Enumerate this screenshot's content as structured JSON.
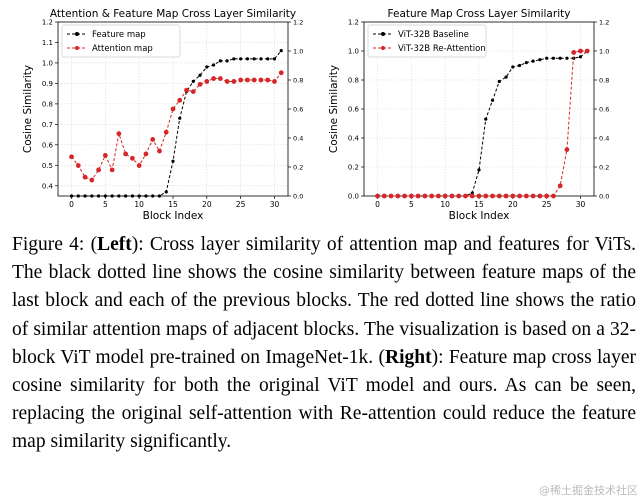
{
  "chart_data": [
    {
      "type": "line",
      "title": "Attention & Feature Map Cross Layer Similarity",
      "xlabel": "Block Index",
      "ylabel": "Cosine Similarity",
      "xlim": [
        -2,
        32
      ],
      "ylim": [
        0.35,
        1.2
      ],
      "ylim_right": [
        0.0,
        1.2
      ],
      "x_ticks": [
        0,
        5,
        10,
        15,
        20,
        25,
        30
      ],
      "y_ticks": [
        0.4,
        0.5,
        0.6,
        0.7,
        0.8,
        0.9,
        1.0,
        1.1,
        1.2
      ],
      "y_ticks_right": [
        0.0,
        0.2,
        0.4,
        0.6,
        0.8,
        1.0,
        1.2
      ],
      "grid": true,
      "legend_position": "top-left",
      "series": [
        {
          "name": "Feature map",
          "axis": "left",
          "color": "#000000",
          "x": [
            0,
            1,
            2,
            3,
            4,
            5,
            6,
            7,
            8,
            9,
            10,
            11,
            12,
            13,
            14,
            15,
            16,
            17,
            18,
            19,
            20,
            21,
            22,
            23,
            24,
            25,
            26,
            27,
            28,
            29,
            30,
            31
          ],
          "values": [
            0.35,
            0.35,
            0.35,
            0.35,
            0.35,
            0.35,
            0.35,
            0.35,
            0.35,
            0.35,
            0.35,
            0.35,
            0.35,
            0.35,
            0.37,
            0.52,
            0.73,
            0.86,
            0.91,
            0.94,
            0.98,
            0.99,
            1.01,
            1.01,
            1.02,
            1.02,
            1.02,
            1.02,
            1.02,
            1.02,
            1.02,
            1.06
          ]
        },
        {
          "name": "Attention map",
          "axis": "right",
          "color": "#d62728",
          "x": [
            0,
            1,
            2,
            3,
            4,
            5,
            6,
            7,
            8,
            9,
            10,
            11,
            12,
            13,
            14,
            15,
            16,
            17,
            18,
            19,
            20,
            21,
            22,
            23,
            24,
            25,
            26,
            27,
            28,
            29,
            30,
            31
          ],
          "values": [
            0.27,
            0.21,
            0.13,
            0.11,
            0.18,
            0.28,
            0.18,
            0.43,
            0.29,
            0.26,
            0.21,
            0.29,
            0.39,
            0.31,
            0.44,
            0.6,
            0.66,
            0.73,
            0.72,
            0.77,
            0.79,
            0.81,
            0.81,
            0.79,
            0.79,
            0.8,
            0.8,
            0.8,
            0.8,
            0.8,
            0.79,
            0.85
          ]
        }
      ]
    },
    {
      "type": "line",
      "title": "Feature Map Cross Layer Similarity",
      "xlabel": "Block Index",
      "ylabel": "Cosine Similarity",
      "xlim": [
        -2,
        32
      ],
      "ylim": [
        0.0,
        1.2
      ],
      "ylim_right": [
        0.0,
        1.2
      ],
      "x_ticks": [
        0,
        5,
        10,
        15,
        20,
        25,
        30
      ],
      "y_ticks": [
        0.0,
        0.2,
        0.4,
        0.6,
        0.8,
        1.0,
        1.2
      ],
      "y_ticks_right": [
        0.0,
        0.2,
        0.4,
        0.6,
        0.8,
        1.0,
        1.2
      ],
      "grid": true,
      "legend_position": "top-left",
      "series": [
        {
          "name": "ViT-32B Baseline",
          "axis": "left",
          "color": "#000000",
          "x": [
            0,
            1,
            2,
            3,
            4,
            5,
            6,
            7,
            8,
            9,
            10,
            11,
            12,
            13,
            14,
            15,
            16,
            17,
            18,
            19,
            20,
            21,
            22,
            23,
            24,
            25,
            26,
            27,
            28,
            29,
            30,
            31
          ],
          "values": [
            0,
            0,
            0,
            0,
            0,
            0,
            0,
            0,
            0,
            0,
            0,
            0,
            0,
            0,
            0.02,
            0.18,
            0.53,
            0.66,
            0.79,
            0.82,
            0.89,
            0.9,
            0.92,
            0.93,
            0.94,
            0.95,
            0.95,
            0.95,
            0.95,
            0.95,
            0.96,
            1.0
          ]
        },
        {
          "name": "ViT-32B Re-Attention",
          "axis": "right",
          "color": "#d62728",
          "x": [
            0,
            1,
            2,
            3,
            4,
            5,
            6,
            7,
            8,
            9,
            10,
            11,
            12,
            13,
            14,
            15,
            16,
            17,
            18,
            19,
            20,
            21,
            22,
            23,
            24,
            25,
            26,
            27,
            28,
            29,
            30,
            31
          ],
          "values": [
            0,
            0,
            0,
            0,
            0,
            0,
            0,
            0,
            0,
            0,
            0,
            0,
            0,
            0,
            0,
            0,
            0,
            0,
            0,
            0,
            0,
            0,
            0,
            0,
            0,
            0,
            0,
            0.07,
            0.32,
            0.99,
            1.0,
            1.0
          ]
        }
      ]
    }
  ],
  "caption": {
    "label": "Figure 4: (",
    "left_word": "Left",
    "part1": "): Cross layer similarity of attention map and features for ViTs. The black dotted line shows the cosine similarity between feature maps of the last block and each of the previous blocks. The red dotted line shows the ratio of similar attention maps of adjacent blocks. The visualization is based on a 32-block ViT model pre-trained on ImageNet-1k. (",
    "right_word": "Right",
    "part2": "): Feature map cross layer cosine similarity for both the original ViT model and ours. As can be seen, replacing the original self-attention with Re-attention could reduce the feature map similarity significantly."
  },
  "watermark": "@稀土掘金技术社区"
}
